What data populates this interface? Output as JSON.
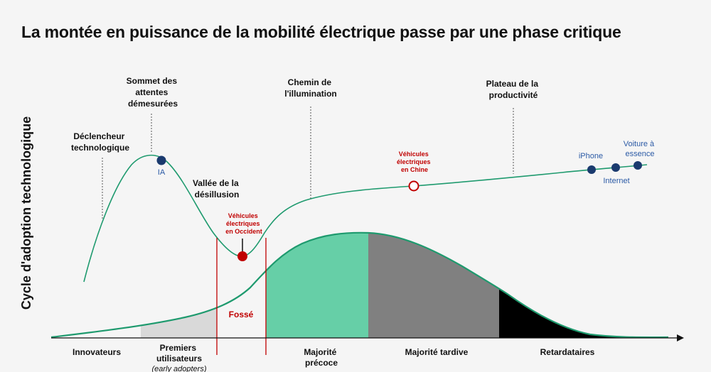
{
  "title": "La montée en puissance de la mobilité électrique passe par une phase critique",
  "y_axis_label": "Cycle d'adoption technologique",
  "phases": {
    "trigger": [
      "Déclencheur",
      "technologique"
    ],
    "peak": [
      "Sommet des",
      "attentes",
      "démesurées"
    ],
    "trough": [
      "Vallée de la",
      "désillusion"
    ],
    "slope": [
      "Chemin de",
      "l'illumination"
    ],
    "plateau": [
      "Plateau de la",
      "productivité"
    ]
  },
  "markers": {
    "ia": "IA",
    "ev_west": [
      "Véhicules",
      "électriques",
      "en Occident"
    ],
    "ev_china": [
      "Véhicules",
      "électriques",
      "en Chine"
    ],
    "iphone": "iPhone",
    "internet": "Internet",
    "ice_car": [
      "Voiture à",
      "essence"
    ]
  },
  "chasm": "Fossé",
  "segments": {
    "innovators": "Innovateurs",
    "early_adopters": [
      "Premiers",
      "utilisateurs"
    ],
    "early_adopters_note": "(early adopters)",
    "early_majority": [
      "Majorité",
      "précoce"
    ],
    "late_majority": "Majorité tardive",
    "laggards": "Retardataires"
  },
  "colors": {
    "curve": "#1e9a6e",
    "early_majority_fill": "#66cfa7",
    "late_majority_fill": "#808080",
    "laggards_fill": "#000000",
    "early_adopters_fill": "#d9d9d9",
    "navy_marker": "#1a3a6e",
    "red": "#c00000",
    "blue_text": "#2b5aa5"
  }
}
